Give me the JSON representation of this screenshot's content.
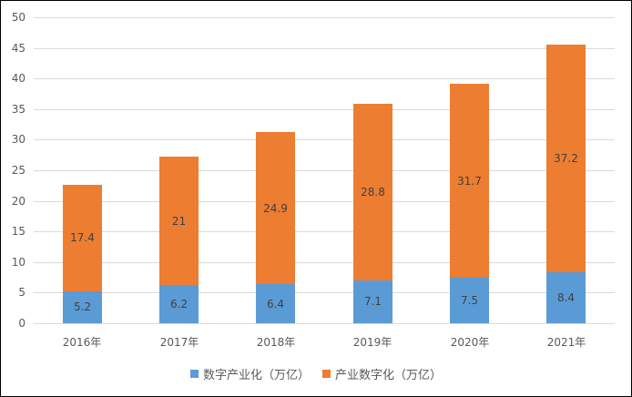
{
  "chart_data": {
    "type": "bar",
    "stacked": true,
    "title": "",
    "xlabel": "",
    "ylabel": "",
    "ylim": [
      0,
      50
    ],
    "yticks": [
      0,
      5,
      10,
      15,
      20,
      25,
      30,
      35,
      40,
      45,
      50
    ],
    "grid": true,
    "legend_position": "bottom",
    "categories": [
      "2016年",
      "2017年",
      "2018年",
      "2019年",
      "2020年",
      "2021年"
    ],
    "series": [
      {
        "name": "数字产业化（万亿）",
        "color": "#5B9BD5",
        "values": [
          5.2,
          6.2,
          6.4,
          7.1,
          7.5,
          8.4
        ],
        "labels": [
          "5.2",
          "6.2",
          "6.4",
          "7.1",
          "7.5",
          "8.4"
        ]
      },
      {
        "name": "产业数字化（万亿）",
        "color": "#ED7D31",
        "values": [
          17.4,
          21,
          24.9,
          28.8,
          31.7,
          37.2
        ],
        "labels": [
          "17.4",
          "21",
          "24.9",
          "28.8",
          "31.7",
          "37.2"
        ]
      }
    ]
  }
}
